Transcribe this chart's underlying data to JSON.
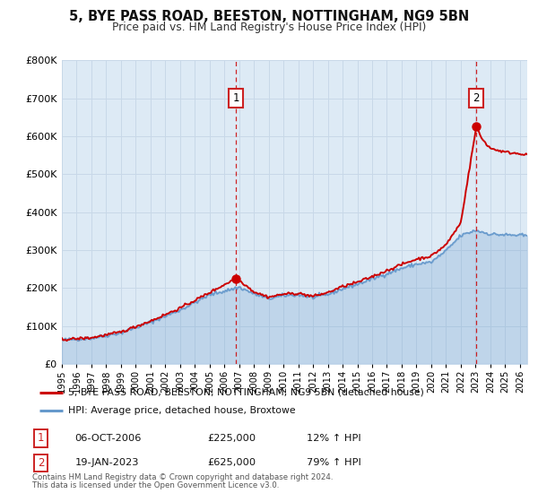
{
  "title": "5, BYE PASS ROAD, BEESTON, NOTTINGHAM, NG9 5BN",
  "subtitle": "Price paid vs. HM Land Registry's House Price Index (HPI)",
  "legend_line1": "5, BYE PASS ROAD, BEESTON, NOTTINGHAM, NG9 5BN (detached house)",
  "legend_line2": "HPI: Average price, detached house, Broxtowe",
  "transaction1_label": "1",
  "transaction1_date": "06-OCT-2006",
  "transaction1_price": "£225,000",
  "transaction1_hpi": "12% ↑ HPI",
  "transaction2_label": "2",
  "transaction2_date": "19-JAN-2023",
  "transaction2_price": "£625,000",
  "transaction2_hpi": "79% ↑ HPI",
  "footnote1": "Contains HM Land Registry data © Crown copyright and database right 2024.",
  "footnote2": "This data is licensed under the Open Government Licence v3.0.",
  "red_color": "#cc0000",
  "blue_color": "#6699cc",
  "bg_color": "#ddeaf5",
  "marker_color": "#cc0000",
  "vline_color": "#cc0000",
  "ylim": [
    0,
    800000
  ],
  "xlim_start": 1995.0,
  "xlim_end": 2026.5,
  "hatch_start": 2023.05,
  "transaction1_x": 2006.77,
  "transaction1_y": 225000,
  "transaction2_x": 2023.05,
  "transaction2_y": 625000
}
